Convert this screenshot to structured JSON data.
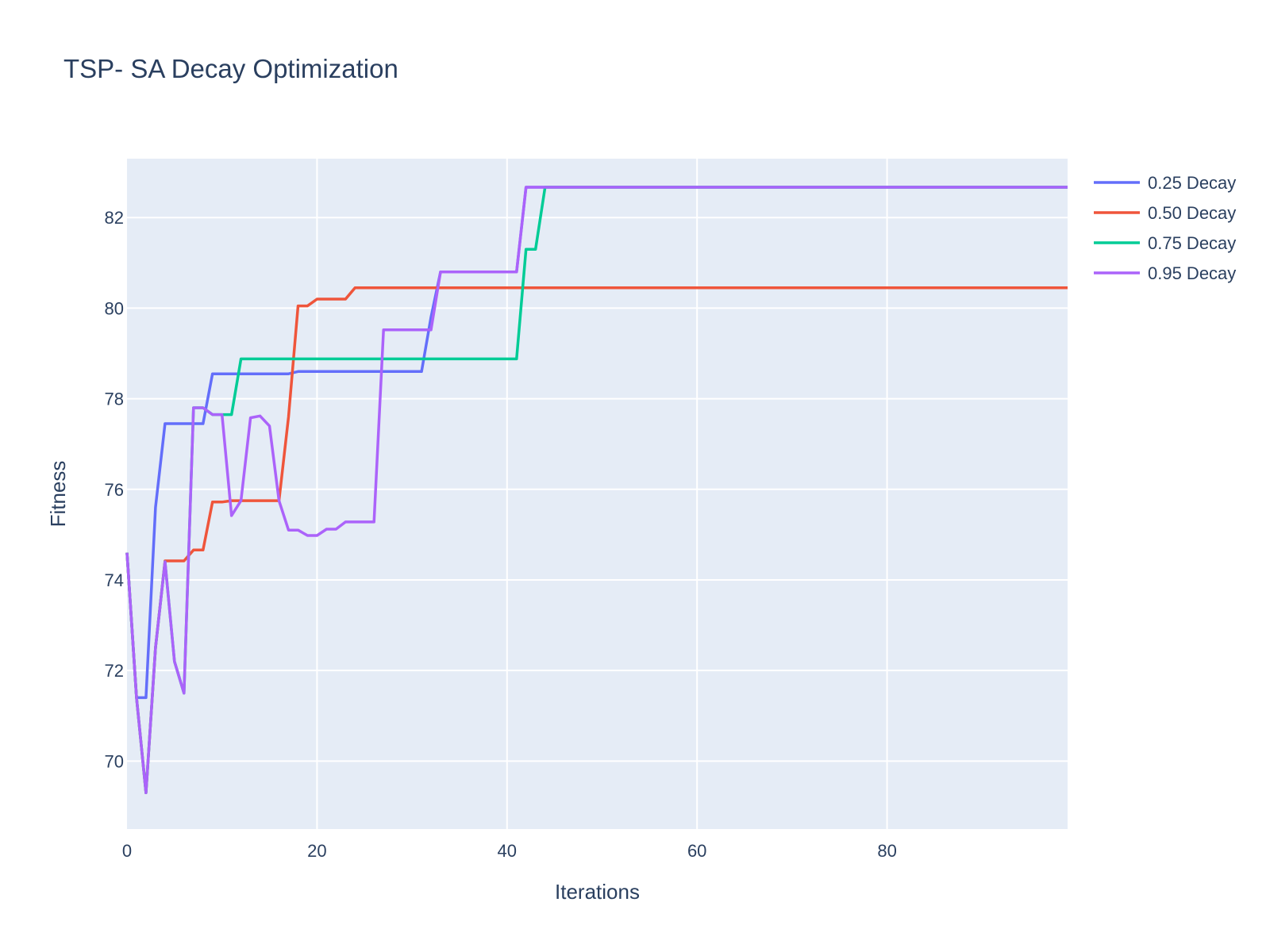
{
  "chart_data": {
    "type": "line",
    "title": "TSP- SA Decay Optimization",
    "xlabel": "Iterations",
    "ylabel": "Fitness",
    "xlim": [
      0,
      99
    ],
    "ylim": [
      68.5,
      83.3
    ],
    "xticks": [
      0,
      20,
      40,
      60,
      80
    ],
    "yticks": [
      70,
      72,
      74,
      76,
      78,
      80,
      82
    ],
    "grid": true,
    "legend_position": "top-right",
    "background_color": "#e5ecf6",
    "grid_color": "#ffffff",
    "text_color": "#2a3f5f",
    "series": [
      {
        "name": "0.25 Decay",
        "color": "#636efa",
        "points": [
          [
            0,
            74.6
          ],
          [
            1,
            71.4
          ],
          [
            2,
            71.4
          ],
          [
            3,
            75.6
          ],
          [
            4,
            77.45
          ],
          [
            5,
            77.45
          ],
          [
            6,
            77.45
          ],
          [
            7,
            77.45
          ],
          [
            8,
            77.45
          ],
          [
            9,
            78.55
          ],
          [
            10,
            78.55
          ],
          [
            11,
            78.55
          ],
          [
            12,
            78.55
          ],
          [
            13,
            78.55
          ],
          [
            14,
            78.55
          ],
          [
            15,
            78.55
          ],
          [
            16,
            78.55
          ],
          [
            17,
            78.55
          ],
          [
            18,
            78.6
          ],
          [
            19,
            78.6
          ],
          [
            20,
            78.6
          ],
          [
            21,
            78.6
          ],
          [
            22,
            78.6
          ],
          [
            23,
            78.6
          ],
          [
            24,
            78.6
          ],
          [
            25,
            78.6
          ],
          [
            26,
            78.6
          ],
          [
            27,
            78.6
          ],
          [
            28,
            78.6
          ],
          [
            29,
            78.6
          ],
          [
            30,
            78.6
          ],
          [
            31,
            78.6
          ],
          [
            32,
            79.8
          ],
          [
            33,
            80.8
          ],
          [
            34,
            80.8
          ],
          [
            35,
            80.8
          ],
          [
            36,
            80.8
          ],
          [
            37,
            80.8
          ],
          [
            38,
            80.8
          ],
          [
            39,
            80.8
          ],
          [
            40,
            80.8
          ],
          [
            41,
            80.8
          ],
          [
            42,
            82.67
          ],
          [
            99,
            82.67
          ]
        ]
      },
      {
        "name": "0.50 Decay",
        "color": "#ef553b",
        "points": [
          [
            0,
            74.6
          ],
          [
            1,
            71.4
          ],
          [
            2,
            69.3
          ],
          [
            3,
            72.5
          ],
          [
            4,
            74.42
          ],
          [
            5,
            74.42
          ],
          [
            6,
            74.42
          ],
          [
            7,
            74.66
          ],
          [
            8,
            74.66
          ],
          [
            9,
            75.72
          ],
          [
            10,
            75.72
          ],
          [
            11,
            75.75
          ],
          [
            12,
            75.75
          ],
          [
            13,
            75.75
          ],
          [
            14,
            75.75
          ],
          [
            15,
            75.75
          ],
          [
            16,
            75.75
          ],
          [
            17,
            77.6
          ],
          [
            18,
            80.05
          ],
          [
            19,
            80.05
          ],
          [
            20,
            80.2
          ],
          [
            21,
            80.2
          ],
          [
            22,
            80.2
          ],
          [
            23,
            80.2
          ],
          [
            24,
            80.45
          ],
          [
            99,
            80.45
          ]
        ]
      },
      {
        "name": "0.75 Decay",
        "color": "#00cc96",
        "points": [
          [
            0,
            74.6
          ],
          [
            1,
            71.4
          ],
          [
            2,
            69.3
          ],
          [
            3,
            72.5
          ],
          [
            4,
            74.4
          ],
          [
            5,
            72.2
          ],
          [
            6,
            71.5
          ],
          [
            7,
            77.8
          ],
          [
            8,
            77.8
          ],
          [
            9,
            77.65
          ],
          [
            10,
            77.65
          ],
          [
            11,
            77.65
          ],
          [
            12,
            78.88
          ],
          [
            13,
            78.88
          ],
          [
            20,
            78.88
          ],
          [
            30,
            78.88
          ],
          [
            40,
            78.88
          ],
          [
            41,
            78.88
          ],
          [
            42,
            81.3
          ],
          [
            43,
            81.3
          ],
          [
            44,
            82.67
          ],
          [
            99,
            82.67
          ]
        ]
      },
      {
        "name": "0.95 Decay",
        "color": "#ab63fa",
        "points": [
          [
            0,
            74.6
          ],
          [
            1,
            71.4
          ],
          [
            2,
            69.3
          ],
          [
            3,
            72.5
          ],
          [
            4,
            74.4
          ],
          [
            5,
            72.2
          ],
          [
            6,
            71.5
          ],
          [
            7,
            77.8
          ],
          [
            8,
            77.8
          ],
          [
            9,
            77.65
          ],
          [
            10,
            77.65
          ],
          [
            11,
            75.42
          ],
          [
            12,
            75.75
          ],
          [
            13,
            77.58
          ],
          [
            14,
            77.62
          ],
          [
            15,
            77.4
          ],
          [
            16,
            75.75
          ],
          [
            17,
            75.1
          ],
          [
            18,
            75.1
          ],
          [
            19,
            74.98
          ],
          [
            20,
            74.98
          ],
          [
            21,
            75.12
          ],
          [
            22,
            75.12
          ],
          [
            23,
            75.28
          ],
          [
            24,
            75.28
          ],
          [
            25,
            75.28
          ],
          [
            26,
            75.28
          ],
          [
            27,
            79.52
          ],
          [
            28,
            79.52
          ],
          [
            29,
            79.52
          ],
          [
            30,
            79.52
          ],
          [
            31,
            79.52
          ],
          [
            32,
            79.52
          ],
          [
            33,
            80.8
          ],
          [
            34,
            80.8
          ],
          [
            35,
            80.8
          ],
          [
            36,
            80.8
          ],
          [
            37,
            80.8
          ],
          [
            38,
            80.8
          ],
          [
            39,
            80.8
          ],
          [
            40,
            80.8
          ],
          [
            41,
            80.8
          ],
          [
            42,
            82.67
          ],
          [
            99,
            82.67
          ]
        ]
      }
    ]
  }
}
